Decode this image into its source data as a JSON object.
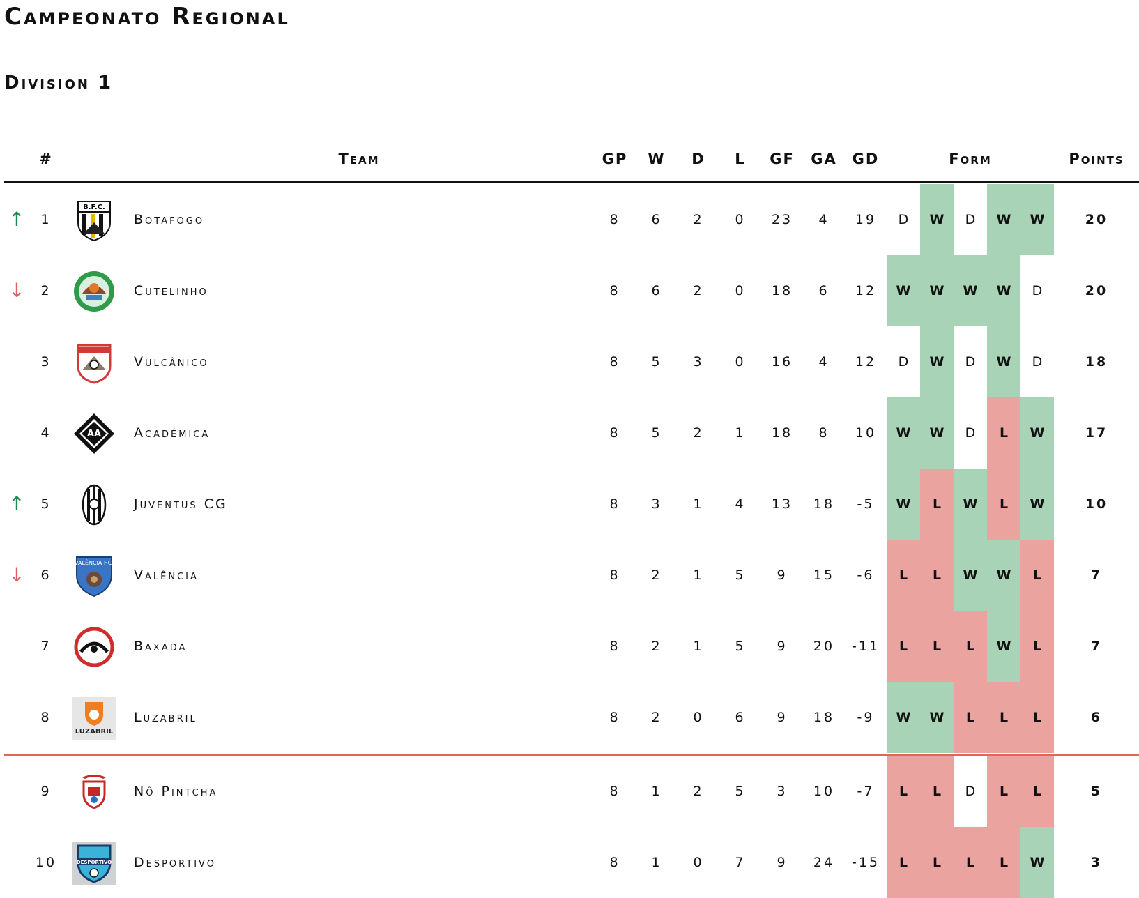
{
  "title": "Campeonato Regional",
  "subtitle": "Division 1",
  "columns": {
    "rank": "#",
    "team": "Team",
    "gp": "GP",
    "w": "W",
    "d": "D",
    "l": "L",
    "gf": "GF",
    "ga": "GA",
    "gd": "GD",
    "form": "Form",
    "points": "Points"
  },
  "colors": {
    "win": "#a9d3b6",
    "loss": "#eaa39f",
    "draw": "#ffffff",
    "arrow_up": "#1c8a4c",
    "arrow_down": "#e06060",
    "relegation_line": "#e0665a"
  },
  "rows": [
    {
      "arrow": "up",
      "rank": "1",
      "team": "Botafogo",
      "logo": "botafogo-crest-icon",
      "gp": "8",
      "w": "6",
      "d": "2",
      "l": "0",
      "gf": "23",
      "ga": "4",
      "gd": "19",
      "form": [
        "D",
        "W",
        "D",
        "W",
        "W"
      ],
      "points": "20"
    },
    {
      "arrow": "down",
      "rank": "2",
      "team": "Cutelinho",
      "logo": "cutelinho-crest-icon",
      "gp": "8",
      "w": "6",
      "d": "2",
      "l": "0",
      "gf": "18",
      "ga": "6",
      "gd": "12",
      "form": [
        "W",
        "W",
        "W",
        "W",
        "D"
      ],
      "points": "20"
    },
    {
      "arrow": "",
      "rank": "3",
      "team": "Vulcânico",
      "logo": "vulcanico-crest-icon",
      "gp": "8",
      "w": "5",
      "d": "3",
      "l": "0",
      "gf": "16",
      "ga": "4",
      "gd": "12",
      "form": [
        "D",
        "W",
        "D",
        "W",
        "D"
      ],
      "points": "18"
    },
    {
      "arrow": "",
      "rank": "4",
      "team": "Académica",
      "logo": "academica-crest-icon",
      "gp": "8",
      "w": "5",
      "d": "2",
      "l": "1",
      "gf": "18",
      "ga": "8",
      "gd": "10",
      "form": [
        "W",
        "W",
        "D",
        "L",
        "W"
      ],
      "points": "17"
    },
    {
      "arrow": "up",
      "rank": "5",
      "team": "Juventus CG",
      "logo": "juventus-crest-icon",
      "gp": "8",
      "w": "3",
      "d": "1",
      "l": "4",
      "gf": "13",
      "ga": "18",
      "gd": "-5",
      "form": [
        "W",
        "L",
        "W",
        "L",
        "W"
      ],
      "points": "10"
    },
    {
      "arrow": "down",
      "rank": "6",
      "team": "Valência",
      "logo": "valencia-crest-icon",
      "gp": "8",
      "w": "2",
      "d": "1",
      "l": "5",
      "gf": "9",
      "ga": "15",
      "gd": "-6",
      "form": [
        "L",
        "L",
        "W",
        "W",
        "L"
      ],
      "points": "7"
    },
    {
      "arrow": "",
      "rank": "7",
      "team": "Baxada",
      "logo": "baxada-crest-icon",
      "gp": "8",
      "w": "2",
      "d": "1",
      "l": "5",
      "gf": "9",
      "ga": "20",
      "gd": "-11",
      "form": [
        "L",
        "L",
        "L",
        "W",
        "L"
      ],
      "points": "7"
    },
    {
      "arrow": "",
      "rank": "8",
      "team": "Luzabril",
      "logo": "luzabril-crest-icon",
      "gp": "8",
      "w": "2",
      "d": "0",
      "l": "6",
      "gf": "9",
      "ga": "18",
      "gd": "-9",
      "form": [
        "W",
        "W",
        "L",
        "L",
        "L"
      ],
      "points": "6"
    },
    {
      "arrow": "",
      "rank": "9",
      "team": "Nô Pintcha",
      "logo": "nopintcha-crest-icon",
      "gp": "8",
      "w": "1",
      "d": "2",
      "l": "5",
      "gf": "3",
      "ga": "10",
      "gd": "-7",
      "form": [
        "L",
        "L",
        "D",
        "L",
        "L"
      ],
      "points": "5"
    },
    {
      "arrow": "",
      "rank": "10",
      "team": "Desportivo",
      "logo": "desportivo-crest-icon",
      "gp": "8",
      "w": "1",
      "d": "0",
      "l": "7",
      "gf": "9",
      "ga": "24",
      "gd": "-15",
      "form": [
        "L",
        "L",
        "L",
        "L",
        "W"
      ],
      "points": "3"
    }
  ]
}
